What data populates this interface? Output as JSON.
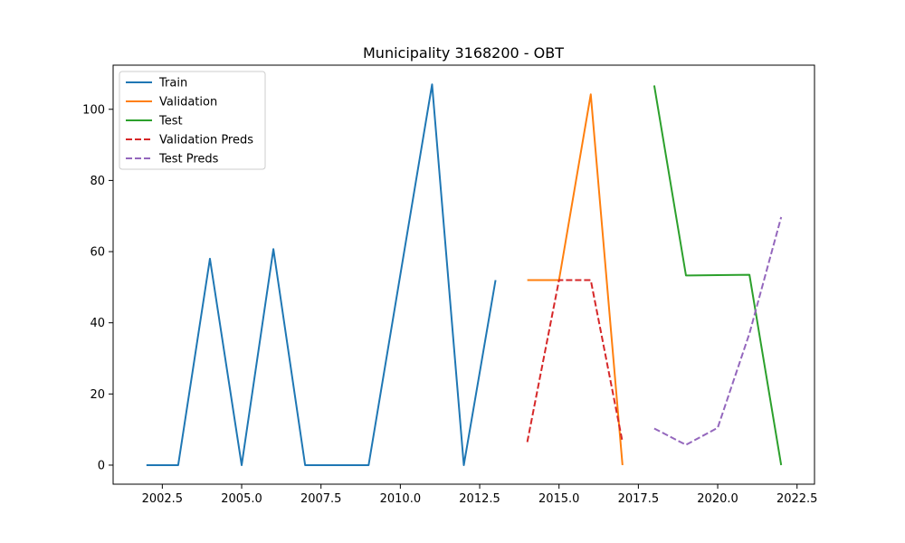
{
  "chart_data": {
    "type": "line",
    "title": "Municipality 3168200 - OBT",
    "xlabel": "",
    "ylabel": "",
    "xlim": [
      2000.95,
      2023.05
    ],
    "ylim": [
      -5.35,
      112.4
    ],
    "x_ticks": [
      2002.5,
      2005.0,
      2007.5,
      2010.0,
      2012.5,
      2015.0,
      2017.5,
      2020.0,
      2022.5
    ],
    "x_tick_labels": [
      "2002.5",
      "2005.0",
      "2007.5",
      "2010.0",
      "2012.5",
      "2015.0",
      "2017.5",
      "2020.0",
      "2022.5"
    ],
    "y_ticks": [
      0,
      20,
      40,
      60,
      80,
      100
    ],
    "y_tick_labels": [
      "0",
      "20",
      "40",
      "60",
      "80",
      "100"
    ],
    "grid": false,
    "legend_position": "top-left",
    "series": [
      {
        "name": "Train",
        "color": "#1f77b4",
        "dash": "solid",
        "x": [
          2002,
          2003,
          2004,
          2005,
          2006,
          2007,
          2008,
          2009,
          2010,
          2011,
          2012,
          2013
        ],
        "y": [
          0,
          0,
          58,
          0,
          60.7,
          0,
          0,
          0,
          53.5,
          107,
          0,
          52
        ]
      },
      {
        "name": "Validation",
        "color": "#ff7f0e",
        "dash": "solid",
        "x": [
          2014,
          2015,
          2016,
          2017
        ],
        "y": [
          52,
          52,
          104.2,
          0
        ]
      },
      {
        "name": "Test",
        "color": "#2ca02c",
        "dash": "solid",
        "x": [
          2018,
          2019,
          2020,
          2021,
          2022
        ],
        "y": [
          106.7,
          53.3,
          53.4,
          53.5,
          0
        ]
      },
      {
        "name": "Validation Preds",
        "color": "#d62728",
        "dash": "dashed",
        "x": [
          2014,
          2015,
          2016,
          2017
        ],
        "y": [
          6.5,
          52,
          52,
          6.5
        ]
      },
      {
        "name": "Test Preds",
        "color": "#9467bd",
        "dash": "dashed",
        "x": [
          2018,
          2019,
          2020,
          2021,
          2022
        ],
        "y": [
          10.3,
          5.7,
          10.5,
          37,
          69.7
        ]
      }
    ]
  }
}
